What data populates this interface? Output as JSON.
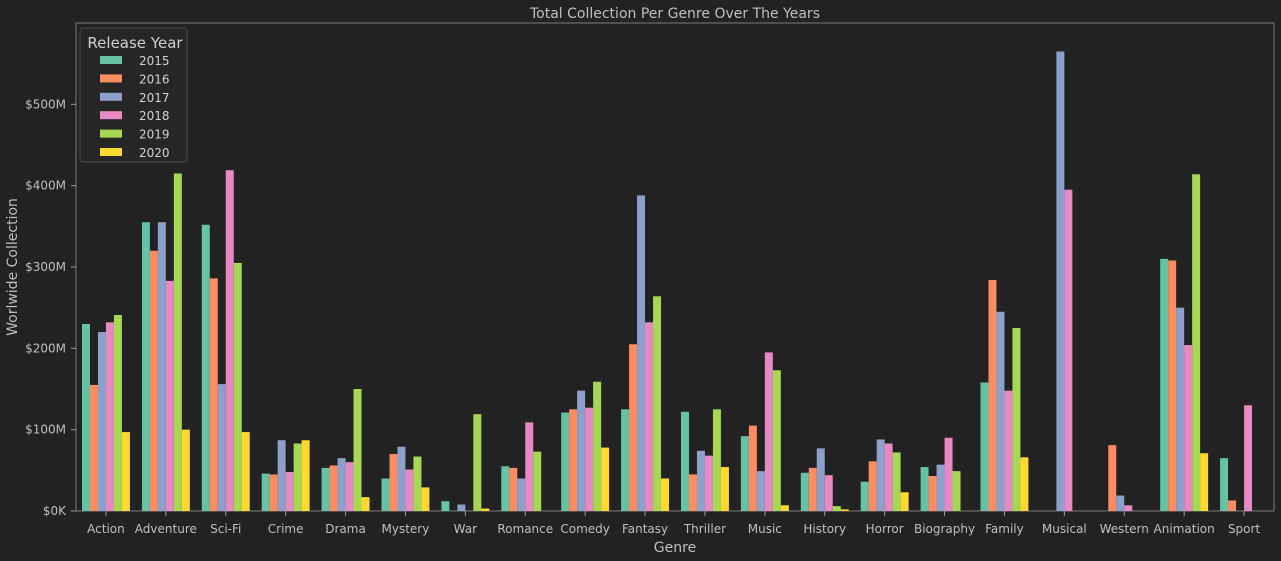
{
  "chart_data": {
    "type": "bar",
    "title": "Total Collection Per Genre Over The Years",
    "xlabel": "Genre",
    "ylabel": "Worlwide Collection",
    "ylim": [
      0,
      600
    ],
    "y_tick_values": [
      0,
      100,
      200,
      300,
      400,
      500
    ],
    "y_tick_labels": [
      "$0K",
      "$100M",
      "$200M",
      "$300M",
      "$400M",
      "$500M"
    ],
    "legend_title": "Release Year",
    "legend_position": "top-left",
    "grid": false,
    "categories": [
      "Action",
      "Adventure",
      "Sci-Fi",
      "Crime",
      "Drama",
      "Mystery",
      "War",
      "Romance",
      "Comedy",
      "Fantasy",
      "Thriller",
      "Music",
      "History",
      "Horror",
      "Biography",
      "Family",
      "Musical",
      "Western",
      "Animation",
      "Sport"
    ],
    "series": [
      {
        "name": "2015",
        "color": "#66c2a5",
        "values": [
          230,
          355,
          352,
          46,
          53,
          40,
          12,
          55,
          121,
          125,
          122,
          92,
          47,
          36,
          54,
          158,
          0,
          0,
          310,
          65
        ]
      },
      {
        "name": "2016",
        "color": "#fc8d62",
        "values": [
          155,
          320,
          286,
          45,
          56,
          70,
          0,
          53,
          125,
          205,
          45,
          105,
          53,
          61,
          43,
          284,
          0,
          81,
          308,
          13
        ]
      },
      {
        "name": "2017",
        "color": "#8da0cb",
        "values": [
          220,
          355,
          156,
          87,
          65,
          79,
          8,
          40,
          148,
          388,
          74,
          49,
          77,
          88,
          57,
          245,
          565,
          19,
          250,
          0
        ]
      },
      {
        "name": "2018",
        "color": "#e78ac3",
        "values": [
          232,
          283,
          419,
          48,
          60,
          51,
          0,
          109,
          127,
          232,
          68,
          195,
          44,
          83,
          90,
          148,
          395,
          7,
          204,
          130
        ]
      },
      {
        "name": "2019",
        "color": "#a6d854",
        "values": [
          241,
          415,
          305,
          83,
          150,
          67,
          119,
          73,
          159,
          264,
          125,
          173,
          6,
          72,
          49,
          225,
          0,
          0,
          414,
          0
        ]
      },
      {
        "name": "2020",
        "color": "#ffd92f",
        "values": [
          97,
          100,
          97,
          87,
          17,
          29,
          3,
          0,
          78,
          40,
          54,
          7,
          2,
          23,
          0,
          66,
          0,
          0,
          71,
          0
        ]
      }
    ]
  }
}
